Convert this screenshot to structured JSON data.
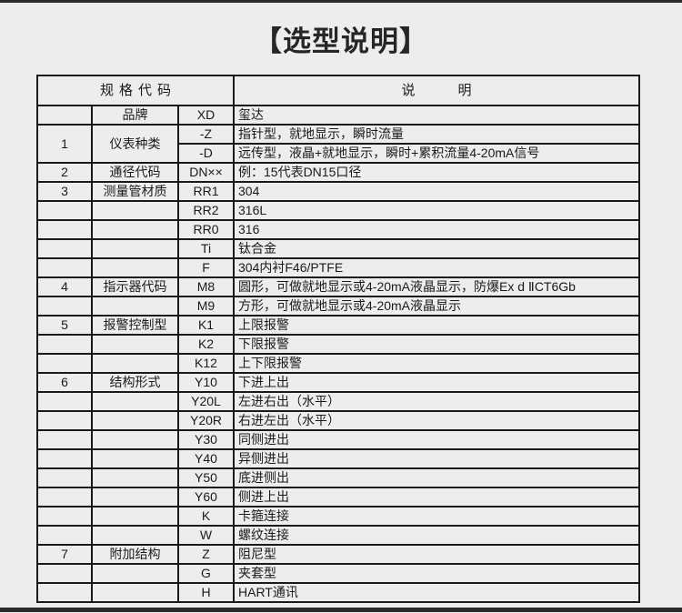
{
  "page": {
    "title": "【选型说明】",
    "colors": {
      "background": "#ededed",
      "divider_bar": "#2b2b2b",
      "text": "#1a1a1a",
      "table_border": "#1a1a1a"
    }
  },
  "table": {
    "header": {
      "spec_code": "规格代码",
      "description": "说明"
    },
    "rows": [
      {
        "num": "",
        "name": "品牌",
        "code": "XD",
        "desc": "玺达"
      },
      {
        "num": "1",
        "name": "仪表种类",
        "rowspan": 2,
        "code": "-Z",
        "desc": "指针型，就地显示，瞬时流量"
      },
      {
        "merged": true,
        "code": "-D",
        "desc": "远传型，液晶+就地显示，瞬时+累积流量4-20mA信号"
      },
      {
        "num": "2",
        "name": "通径代码",
        "code": "DN××",
        "desc": "例：15代表DN15口径"
      },
      {
        "num": "3",
        "name": "测量管材质",
        "code": "RR1",
        "desc": "304"
      },
      {
        "num": "",
        "name": "",
        "code": "RR2",
        "desc": "316L"
      },
      {
        "num": "",
        "name": "",
        "code": "RR0",
        "desc": "316"
      },
      {
        "num": "",
        "name": "",
        "code": "Ti",
        "desc": "钛合金"
      },
      {
        "num": "",
        "name": "",
        "code": "F",
        "desc": "304内衬F46/PTFE"
      },
      {
        "num": "4",
        "name": "指示器代码",
        "code": "M8",
        "desc": "圆形，可做就地显示或4-20mA液晶显示，防爆Ex d ⅡCT6Gb"
      },
      {
        "num": "",
        "name": "",
        "code": "M9",
        "desc": "方形，可做就地显示或4-20mA液晶显示"
      },
      {
        "num": "5",
        "name": "报警控制型",
        "code": "K1",
        "desc": "上限报警"
      },
      {
        "num": "",
        "name": "",
        "code": "K2",
        "desc": "下限报警"
      },
      {
        "num": "",
        "name": "",
        "code": "K12",
        "desc": "上下限报警"
      },
      {
        "num": "6",
        "name": "结构形式",
        "code": "Y10",
        "desc": "下进上出"
      },
      {
        "num": "",
        "name": "",
        "code": "Y20L",
        "desc": "左进右出（水平）"
      },
      {
        "num": "",
        "name": "",
        "code": "Y20R",
        "desc": "右进左出（水平）"
      },
      {
        "num": "",
        "name": "",
        "code": "Y30",
        "desc": "同侧进出"
      },
      {
        "num": "",
        "name": "",
        "code": "Y40",
        "desc": "异侧进出"
      },
      {
        "num": "",
        "name": "",
        "code": "Y50",
        "desc": "底进侧出"
      },
      {
        "num": "",
        "name": "",
        "code": "Y60",
        "desc": "侧进上出"
      },
      {
        "num": "",
        "name": "",
        "code": "K",
        "desc": "卡箍连接"
      },
      {
        "num": "",
        "name": "",
        "code": "W",
        "desc": "螺纹连接"
      },
      {
        "num": "7",
        "name": "附加结构",
        "code": "Z",
        "desc": "阻尼型"
      },
      {
        "num": "",
        "name": "",
        "code": "G",
        "desc": "夹套型"
      },
      {
        "num": "",
        "name": "",
        "code": "H",
        "desc": "HART通讯"
      }
    ]
  }
}
